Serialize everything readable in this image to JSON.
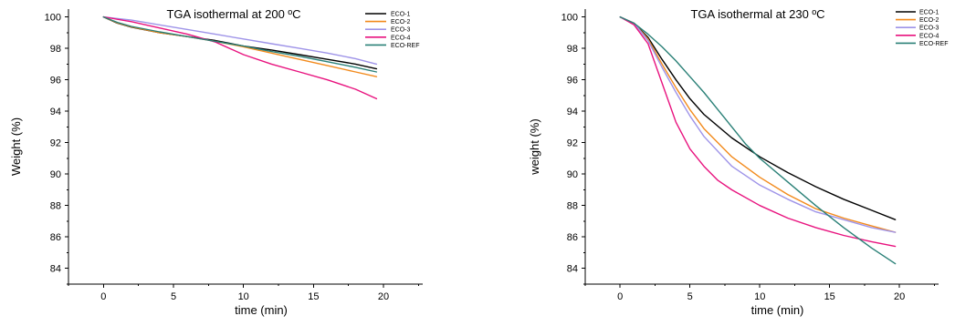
{
  "chart_data": [
    {
      "type": "line",
      "title": "TGA isothermal at 200 ºC",
      "xlabel": "time (min)",
      "ylabel": "Weight (%)",
      "xlim": [
        -2.5,
        22.8
      ],
      "ylim": [
        83,
        100.5
      ],
      "xticks": [
        0,
        5,
        10,
        15,
        20
      ],
      "yticks": [
        84,
        86,
        88,
        90,
        92,
        94,
        96,
        98,
        100
      ],
      "grid": false,
      "legend_position": "top-right",
      "series": [
        {
          "name": "ECO-1",
          "color": "#000000",
          "points": [
            [
              0,
              100
            ],
            [
              1,
              99.6
            ],
            [
              2,
              99.35
            ],
            [
              4,
              99.0
            ],
            [
              6,
              98.75
            ],
            [
              8,
              98.5
            ],
            [
              10,
              98.15
            ],
            [
              12,
              97.9
            ],
            [
              14,
              97.6
            ],
            [
              16,
              97.3
            ],
            [
              18,
              97.0
            ],
            [
              19.5,
              96.7
            ]
          ]
        },
        {
          "name": "ECO-2",
          "color": "#f28a1c",
          "points": [
            [
              0,
              100
            ],
            [
              1,
              99.62
            ],
            [
              2,
              99.37
            ],
            [
              4,
              99.0
            ],
            [
              6,
              98.75
            ],
            [
              8,
              98.45
            ],
            [
              10,
              98.1
            ],
            [
              12,
              97.7
            ],
            [
              14,
              97.3
            ],
            [
              16,
              96.9
            ],
            [
              18,
              96.5
            ],
            [
              19.5,
              96.2
            ]
          ]
        },
        {
          "name": "ECO-3",
          "color": "#9e93e8",
          "points": [
            [
              0,
              100
            ],
            [
              2,
              99.8
            ],
            [
              4,
              99.5
            ],
            [
              6,
              99.2
            ],
            [
              8,
              98.9
            ],
            [
              10,
              98.6
            ],
            [
              12,
              98.3
            ],
            [
              14,
              98.0
            ],
            [
              16,
              97.7
            ],
            [
              18,
              97.35
            ],
            [
              19.5,
              97.0
            ]
          ]
        },
        {
          "name": "ECO-4",
          "color": "#e8127e",
          "points": [
            [
              0,
              100
            ],
            [
              2,
              99.7
            ],
            [
              4,
              99.3
            ],
            [
              6,
              98.9
            ],
            [
              8,
              98.4
            ],
            [
              10,
              97.6
            ],
            [
              12,
              97.0
            ],
            [
              14,
              96.5
            ],
            [
              16,
              96.0
            ],
            [
              18,
              95.4
            ],
            [
              19.5,
              94.8
            ]
          ]
        },
        {
          "name": "ECO-REF",
          "color": "#2a8077",
          "points": [
            [
              0,
              100
            ],
            [
              1,
              99.65
            ],
            [
              2,
              99.4
            ],
            [
              4,
              99.05
            ],
            [
              6,
              98.75
            ],
            [
              8,
              98.45
            ],
            [
              10,
              98.15
            ],
            [
              12,
              97.8
            ],
            [
              14,
              97.5
            ],
            [
              16,
              97.15
            ],
            [
              18,
              96.8
            ],
            [
              19.5,
              96.5
            ]
          ]
        }
      ]
    },
    {
      "type": "line",
      "title": "TGA isothermal at 230 ºC",
      "xlabel": "time (min)",
      "ylabel": "weight (%)",
      "xlim": [
        -2.5,
        22.8
      ],
      "ylim": [
        83,
        100.5
      ],
      "xticks": [
        0,
        5,
        10,
        15,
        20
      ],
      "yticks": [
        84,
        86,
        88,
        90,
        92,
        94,
        96,
        98,
        100
      ],
      "grid": false,
      "legend_position": "top-right",
      "series": [
        {
          "name": "ECO-1",
          "color": "#000000",
          "points": [
            [
              0,
              100
            ],
            [
              1,
              99.6
            ],
            [
              2,
              98.7
            ],
            [
              3,
              97.3
            ],
            [
              4,
              96.0
            ],
            [
              5,
              94.8
            ],
            [
              6,
              93.8
            ],
            [
              8,
              92.3
            ],
            [
              10,
              91.1
            ],
            [
              12,
              90.1
            ],
            [
              14,
              89.2
            ],
            [
              16,
              88.4
            ],
            [
              18,
              87.7
            ],
            [
              19.7,
              87.1
            ]
          ]
        },
        {
          "name": "ECO-2",
          "color": "#f28a1c",
          "points": [
            [
              0,
              100
            ],
            [
              1,
              99.6
            ],
            [
              2,
              98.6
            ],
            [
              3,
              97.0
            ],
            [
              4,
              95.5
            ],
            [
              5,
              94.1
            ],
            [
              6,
              92.9
            ],
            [
              8,
              91.1
            ],
            [
              10,
              89.8
            ],
            [
              12,
              88.7
            ],
            [
              14,
              87.8
            ],
            [
              16,
              87.2
            ],
            [
              18,
              86.7
            ],
            [
              19.7,
              86.3
            ]
          ]
        },
        {
          "name": "ECO-3",
          "color": "#9e93e8",
          "points": [
            [
              0,
              100
            ],
            [
              1,
              99.6
            ],
            [
              2,
              98.5
            ],
            [
              3,
              96.8
            ],
            [
              4,
              95.2
            ],
            [
              5,
              93.7
            ],
            [
              6,
              92.4
            ],
            [
              8,
              90.5
            ],
            [
              10,
              89.3
            ],
            [
              12,
              88.4
            ],
            [
              14,
              87.6
            ],
            [
              16,
              87.1
            ],
            [
              18,
              86.6
            ],
            [
              19.7,
              86.3
            ]
          ]
        },
        {
          "name": "ECO-4",
          "color": "#e8127e",
          "points": [
            [
              0,
              100
            ],
            [
              1,
              99.5
            ],
            [
              2,
              98.3
            ],
            [
              3,
              95.8
            ],
            [
              4,
              93.3
            ],
            [
              5,
              91.6
            ],
            [
              6,
              90.5
            ],
            [
              7,
              89.6
            ],
            [
              8,
              89.0
            ],
            [
              10,
              88.0
            ],
            [
              12,
              87.2
            ],
            [
              14,
              86.6
            ],
            [
              16,
              86.1
            ],
            [
              18,
              85.7
            ],
            [
              19.7,
              85.4
            ]
          ]
        },
        {
          "name": "ECO-REF",
          "color": "#2a8077",
          "points": [
            [
              0,
              100
            ],
            [
              1,
              99.6
            ],
            [
              2,
              98.9
            ],
            [
              3,
              98.1
            ],
            [
              4,
              97.2
            ],
            [
              5,
              96.2
            ],
            [
              6,
              95.2
            ],
            [
              7,
              94.1
            ],
            [
              8,
              93.0
            ],
            [
              9,
              91.9
            ],
            [
              10,
              91.0
            ],
            [
              12,
              89.5
            ],
            [
              14,
              88.0
            ],
            [
              16,
              86.6
            ],
            [
              18,
              85.3
            ],
            [
              19.7,
              84.3
            ]
          ]
        }
      ]
    }
  ]
}
